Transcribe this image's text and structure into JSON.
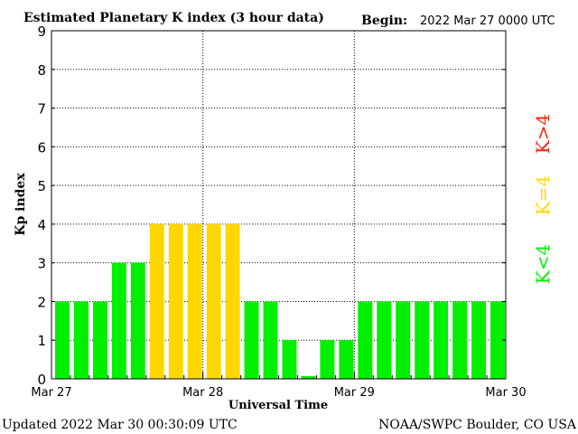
{
  "chart_data": {
    "type": "bar",
    "title": "Estimated Planetary K index (3 hour data)",
    "begin_label": "Begin:",
    "begin_value": "2022 Mar 27 0000 UTC",
    "ylabel": "Kp index",
    "xlabel": "Universal Time",
    "ylim": [
      0,
      9
    ],
    "yticks": [
      "0",
      "1",
      "2",
      "3",
      "4",
      "5",
      "6",
      "7",
      "8",
      "9"
    ],
    "xticks": [
      "Mar 27",
      "Mar 28",
      "Mar 29",
      "Mar 30"
    ],
    "grid": true,
    "bars_per_day": 8,
    "values": [
      2,
      2,
      2,
      3,
      3,
      4,
      4,
      4,
      4,
      4,
      2,
      2,
      1,
      0.07,
      1,
      1,
      2,
      2,
      2,
      2,
      2,
      2,
      2,
      2
    ],
    "colors": {
      "below": "#00f000",
      "equal": "#ffd700",
      "above": "#ff2000"
    },
    "legend": [
      {
        "label": "K<4",
        "color": "#00f000"
      },
      {
        "label": "K=4",
        "color": "#ffd700"
      },
      {
        "label": "K>4",
        "color": "#ff2000"
      }
    ],
    "footer_left": "Updated 2022 Mar 30 00:30:09 UTC",
    "footer_right": "NOAA/SWPC Boulder, CO USA"
  }
}
